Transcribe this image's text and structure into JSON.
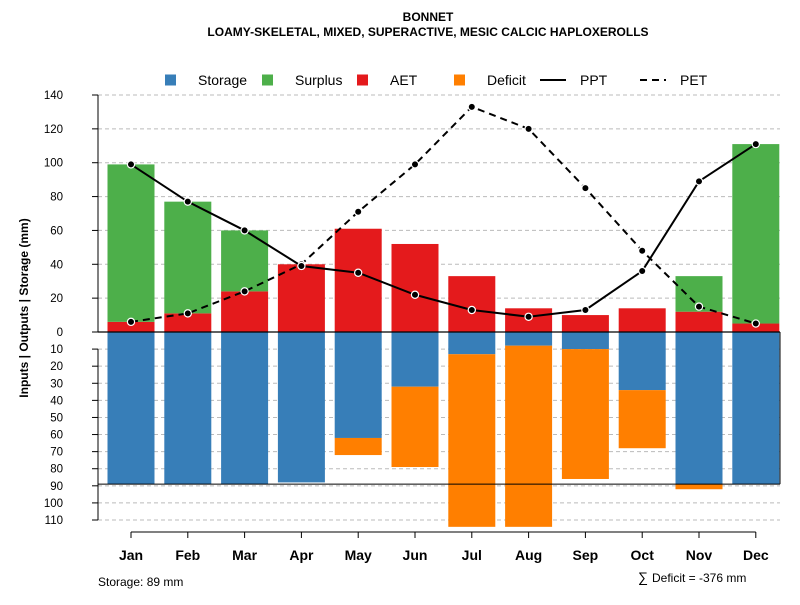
{
  "chart_data": {
    "type": "bar",
    "title": "BONNET",
    "subtitle": "LOAMY-SKELETAL, MIXED, SUPERACTIVE, MESIC CALCIC HAPLOXEROLLS",
    "ylabel": "Inputs | Outputs | Storage    (mm)",
    "categories": [
      "Jan",
      "Feb",
      "Mar",
      "Apr",
      "May",
      "Jun",
      "Jul",
      "Aug",
      "Sep",
      "Oct",
      "Nov",
      "Dec"
    ],
    "upper_axis": {
      "ylim": [
        0,
        140
      ],
      "ticks": [
        0,
        20,
        40,
        60,
        80,
        100,
        120,
        140
      ]
    },
    "lower_axis": {
      "ylim": [
        0,
        110
      ],
      "tick_labels": [
        "10",
        "20",
        "30",
        "40",
        "50",
        "60",
        "70",
        "80",
        "90",
        "100",
        "110"
      ]
    },
    "series": [
      {
        "name": "Storage",
        "color": "#377eb8",
        "values": [
          89,
          89,
          89,
          88,
          62,
          32,
          13,
          8,
          10,
          34,
          89,
          89
        ]
      },
      {
        "name": "Surplus",
        "color": "#4daf4a",
        "values": [
          93,
          66,
          36,
          0,
          0,
          0,
          0,
          0,
          0,
          0,
          21,
          106
        ]
      },
      {
        "name": "AET",
        "color": "#e41a1c",
        "values": [
          6,
          11,
          24,
          40,
          61,
          52,
          33,
          14,
          10,
          14,
          12,
          5
        ]
      },
      {
        "name": "Deficit",
        "color": "#ff7f00",
        "values": [
          0,
          0,
          0,
          0,
          10,
          47,
          101,
          106,
          76,
          34,
          3,
          0
        ]
      },
      {
        "name": "PPT",
        "style": "solid",
        "values": [
          99,
          77,
          60,
          39,
          35,
          22,
          13,
          9,
          13,
          36,
          89,
          111
        ]
      },
      {
        "name": "PET",
        "style": "dashed",
        "values": [
          6,
          11,
          24,
          40,
          71,
          99,
          133,
          120,
          85,
          48,
          15,
          5
        ]
      }
    ],
    "storage_capacity": 89,
    "legend_position": "top",
    "grid": true
  },
  "footer": {
    "storage_text": "Storage: 89 mm",
    "deficit_symbol": "∑",
    "deficit_text": "Deficit = -376 mm"
  }
}
